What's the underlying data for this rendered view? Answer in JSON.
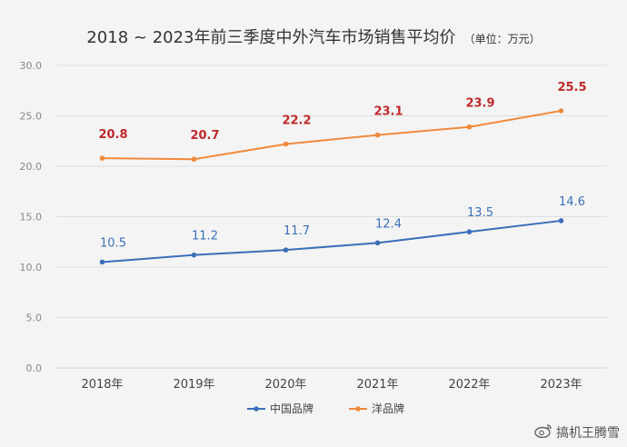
{
  "chart_data": {
    "type": "line",
    "title": "2018 ~ 2023年前三季度中外汽车市场销售平均价",
    "unit_label": "（单位：万元）",
    "categories": [
      "2018年",
      "2019年",
      "2020年",
      "2021年",
      "2022年",
      "2023年"
    ],
    "series": [
      {
        "name": "中国品牌",
        "color": "#3a6fb8",
        "label_color": "#3a6fb8",
        "values": [
          10.5,
          11.2,
          11.7,
          12.4,
          13.5,
          14.6
        ]
      },
      {
        "name": "洋品牌",
        "color": "#f08a3c",
        "label_color": "#c0282b",
        "values": [
          20.8,
          20.7,
          22.2,
          23.1,
          23.9,
          25.5
        ]
      }
    ],
    "ylim": [
      0,
      30
    ],
    "yticks": [
      "0.0",
      "5.0",
      "10.0",
      "15.0",
      "20.0",
      "25.0",
      "30.0"
    ],
    "grid": true,
    "legend_position": "bottom-center"
  },
  "watermark": {
    "text": "搞机王腾雪",
    "icon": "weibo-icon"
  }
}
